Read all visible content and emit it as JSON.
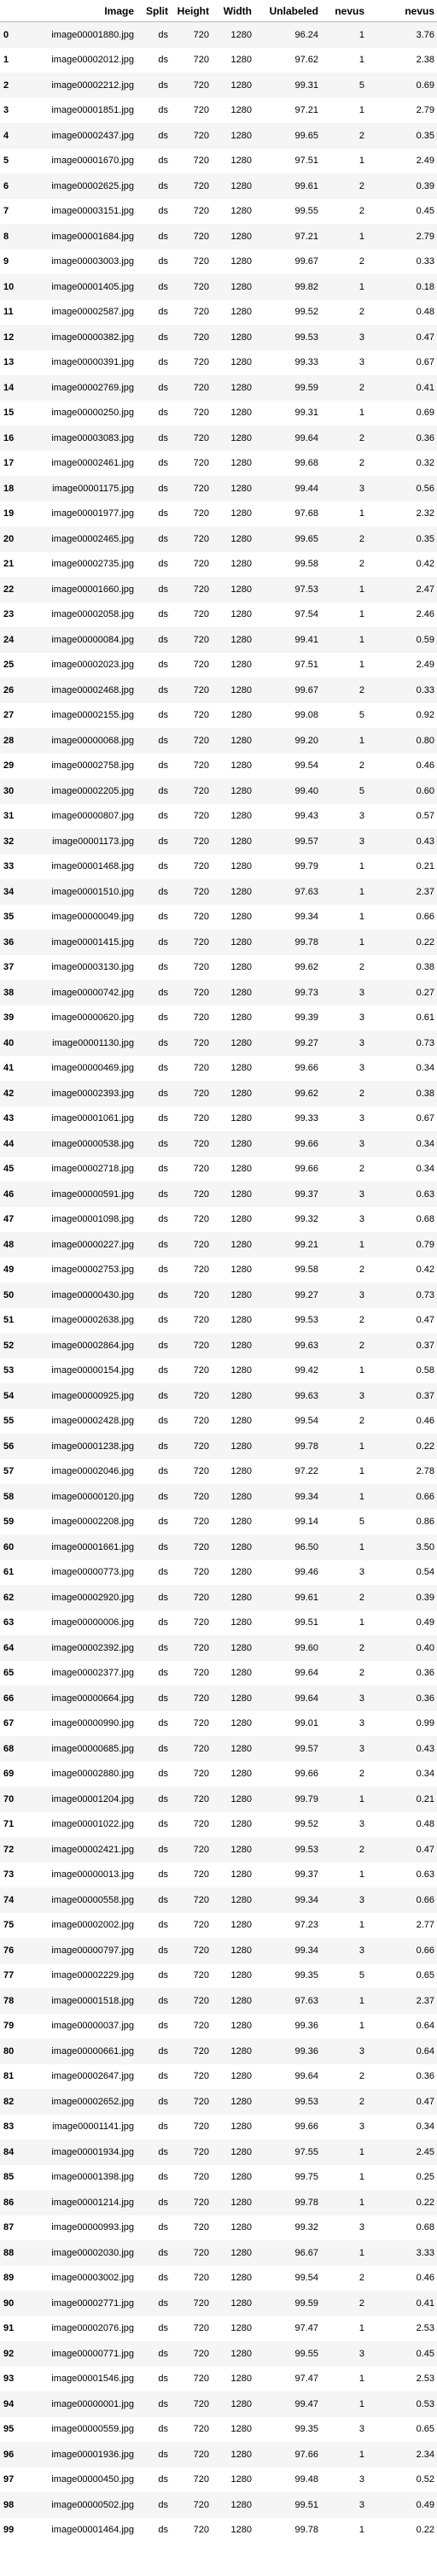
{
  "table": {
    "columns": [
      "",
      "Image",
      "Split",
      "Height",
      "Width",
      "Unlabeled",
      "nevus",
      "nevus"
    ],
    "rows": [
      [
        "0",
        "image00001880.jpg",
        "ds",
        "720",
        "1280",
        "96.24",
        "1",
        "3.76"
      ],
      [
        "1",
        "image00002012.jpg",
        "ds",
        "720",
        "1280",
        "97.62",
        "1",
        "2.38"
      ],
      [
        "2",
        "image00002212.jpg",
        "ds",
        "720",
        "1280",
        "99.31",
        "5",
        "0.69"
      ],
      [
        "3",
        "image00001851.jpg",
        "ds",
        "720",
        "1280",
        "97.21",
        "1",
        "2.79"
      ],
      [
        "4",
        "image00002437.jpg",
        "ds",
        "720",
        "1280",
        "99.65",
        "2",
        "0.35"
      ],
      [
        "5",
        "image00001670.jpg",
        "ds",
        "720",
        "1280",
        "97.51",
        "1",
        "2.49"
      ],
      [
        "6",
        "image00002625.jpg",
        "ds",
        "720",
        "1280",
        "99.61",
        "2",
        "0.39"
      ],
      [
        "7",
        "image00003151.jpg",
        "ds",
        "720",
        "1280",
        "99.55",
        "2",
        "0.45"
      ],
      [
        "8",
        "image00001684.jpg",
        "ds",
        "720",
        "1280",
        "97.21",
        "1",
        "2.79"
      ],
      [
        "9",
        "image00003003.jpg",
        "ds",
        "720",
        "1280",
        "99.67",
        "2",
        "0.33"
      ],
      [
        "10",
        "image00001405.jpg",
        "ds",
        "720",
        "1280",
        "99.82",
        "1",
        "0.18"
      ],
      [
        "11",
        "image00002587.jpg",
        "ds",
        "720",
        "1280",
        "99.52",
        "2",
        "0.48"
      ],
      [
        "12",
        "image00000382.jpg",
        "ds",
        "720",
        "1280",
        "99.53",
        "3",
        "0.47"
      ],
      [
        "13",
        "image00000391.jpg",
        "ds",
        "720",
        "1280",
        "99.33",
        "3",
        "0.67"
      ],
      [
        "14",
        "image00002769.jpg",
        "ds",
        "720",
        "1280",
        "99.59",
        "2",
        "0.41"
      ],
      [
        "15",
        "image00000250.jpg",
        "ds",
        "720",
        "1280",
        "99.31",
        "1",
        "0.69"
      ],
      [
        "16",
        "image00003083.jpg",
        "ds",
        "720",
        "1280",
        "99.64",
        "2",
        "0.36"
      ],
      [
        "17",
        "image00002461.jpg",
        "ds",
        "720",
        "1280",
        "99.68",
        "2",
        "0.32"
      ],
      [
        "18",
        "image00001175.jpg",
        "ds",
        "720",
        "1280",
        "99.44",
        "3",
        "0.56"
      ],
      [
        "19",
        "image00001977.jpg",
        "ds",
        "720",
        "1280",
        "97.68",
        "1",
        "2.32"
      ],
      [
        "20",
        "image00002465.jpg",
        "ds",
        "720",
        "1280",
        "99.65",
        "2",
        "0.35"
      ],
      [
        "21",
        "image00002735.jpg",
        "ds",
        "720",
        "1280",
        "99.58",
        "2",
        "0.42"
      ],
      [
        "22",
        "image00001660.jpg",
        "ds",
        "720",
        "1280",
        "97.53",
        "1",
        "2.47"
      ],
      [
        "23",
        "image00002058.jpg",
        "ds",
        "720",
        "1280",
        "97.54",
        "1",
        "2.46"
      ],
      [
        "24",
        "image00000084.jpg",
        "ds",
        "720",
        "1280",
        "99.41",
        "1",
        "0.59"
      ],
      [
        "25",
        "image00002023.jpg",
        "ds",
        "720",
        "1280",
        "97.51",
        "1",
        "2.49"
      ],
      [
        "26",
        "image00002468.jpg",
        "ds",
        "720",
        "1280",
        "99.67",
        "2",
        "0.33"
      ],
      [
        "27",
        "image00002155.jpg",
        "ds",
        "720",
        "1280",
        "99.08",
        "5",
        "0.92"
      ],
      [
        "28",
        "image00000068.jpg",
        "ds",
        "720",
        "1280",
        "99.20",
        "1",
        "0.80"
      ],
      [
        "29",
        "image00002758.jpg",
        "ds",
        "720",
        "1280",
        "99.54",
        "2",
        "0.46"
      ],
      [
        "30",
        "image00002205.jpg",
        "ds",
        "720",
        "1280",
        "99.40",
        "5",
        "0.60"
      ],
      [
        "31",
        "image00000807.jpg",
        "ds",
        "720",
        "1280",
        "99.43",
        "3",
        "0.57"
      ],
      [
        "32",
        "image00001173.jpg",
        "ds",
        "720",
        "1280",
        "99.57",
        "3",
        "0.43"
      ],
      [
        "33",
        "image00001468.jpg",
        "ds",
        "720",
        "1280",
        "99.79",
        "1",
        "0.21"
      ],
      [
        "34",
        "image00001510.jpg",
        "ds",
        "720",
        "1280",
        "97.63",
        "1",
        "2.37"
      ],
      [
        "35",
        "image00000049.jpg",
        "ds",
        "720",
        "1280",
        "99.34",
        "1",
        "0.66"
      ],
      [
        "36",
        "image00001415.jpg",
        "ds",
        "720",
        "1280",
        "99.78",
        "1",
        "0.22"
      ],
      [
        "37",
        "image00003130.jpg",
        "ds",
        "720",
        "1280",
        "99.62",
        "2",
        "0.38"
      ],
      [
        "38",
        "image00000742.jpg",
        "ds",
        "720",
        "1280",
        "99.73",
        "3",
        "0.27"
      ],
      [
        "39",
        "image00000620.jpg",
        "ds",
        "720",
        "1280",
        "99.39",
        "3",
        "0.61"
      ],
      [
        "40",
        "image00001130.jpg",
        "ds",
        "720",
        "1280",
        "99.27",
        "3",
        "0.73"
      ],
      [
        "41",
        "image00000469.jpg",
        "ds",
        "720",
        "1280",
        "99.66",
        "3",
        "0.34"
      ],
      [
        "42",
        "image00002393.jpg",
        "ds",
        "720",
        "1280",
        "99.62",
        "2",
        "0.38"
      ],
      [
        "43",
        "image00001061.jpg",
        "ds",
        "720",
        "1280",
        "99.33",
        "3",
        "0.67"
      ],
      [
        "44",
        "image00000538.jpg",
        "ds",
        "720",
        "1280",
        "99.66",
        "3",
        "0.34"
      ],
      [
        "45",
        "image00002718.jpg",
        "ds",
        "720",
        "1280",
        "99.66",
        "2",
        "0.34"
      ],
      [
        "46",
        "image00000591.jpg",
        "ds",
        "720",
        "1280",
        "99.37",
        "3",
        "0.63"
      ],
      [
        "47",
        "image00001098.jpg",
        "ds",
        "720",
        "1280",
        "99.32",
        "3",
        "0.68"
      ],
      [
        "48",
        "image00000227.jpg",
        "ds",
        "720",
        "1280",
        "99.21",
        "1",
        "0.79"
      ],
      [
        "49",
        "image00002753.jpg",
        "ds",
        "720",
        "1280",
        "99.58",
        "2",
        "0.42"
      ],
      [
        "50",
        "image00000430.jpg",
        "ds",
        "720",
        "1280",
        "99.27",
        "3",
        "0.73"
      ],
      [
        "51",
        "image00002638.jpg",
        "ds",
        "720",
        "1280",
        "99.53",
        "2",
        "0.47"
      ],
      [
        "52",
        "image00002864.jpg",
        "ds",
        "720",
        "1280",
        "99.63",
        "2",
        "0.37"
      ],
      [
        "53",
        "image00000154.jpg",
        "ds",
        "720",
        "1280",
        "99.42",
        "1",
        "0.58"
      ],
      [
        "54",
        "image00000925.jpg",
        "ds",
        "720",
        "1280",
        "99.63",
        "3",
        "0.37"
      ],
      [
        "55",
        "image00002428.jpg",
        "ds",
        "720",
        "1280",
        "99.54",
        "2",
        "0.46"
      ],
      [
        "56",
        "image00001238.jpg",
        "ds",
        "720",
        "1280",
        "99.78",
        "1",
        "0.22"
      ],
      [
        "57",
        "image00002046.jpg",
        "ds",
        "720",
        "1280",
        "97.22",
        "1",
        "2.78"
      ],
      [
        "58",
        "image00000120.jpg",
        "ds",
        "720",
        "1280",
        "99.34",
        "1",
        "0.66"
      ],
      [
        "59",
        "image00002208.jpg",
        "ds",
        "720",
        "1280",
        "99.14",
        "5",
        "0.86"
      ],
      [
        "60",
        "image00001661.jpg",
        "ds",
        "720",
        "1280",
        "96.50",
        "1",
        "3.50"
      ],
      [
        "61",
        "image00000773.jpg",
        "ds",
        "720",
        "1280",
        "99.46",
        "3",
        "0.54"
      ],
      [
        "62",
        "image00002920.jpg",
        "ds",
        "720",
        "1280",
        "99.61",
        "2",
        "0.39"
      ],
      [
        "63",
        "image00000006.jpg",
        "ds",
        "720",
        "1280",
        "99.51",
        "1",
        "0.49"
      ],
      [
        "64",
        "image00002392.jpg",
        "ds",
        "720",
        "1280",
        "99.60",
        "2",
        "0.40"
      ],
      [
        "65",
        "image00002377.jpg",
        "ds",
        "720",
        "1280",
        "99.64",
        "2",
        "0.36"
      ],
      [
        "66",
        "image00000664.jpg",
        "ds",
        "720",
        "1280",
        "99.64",
        "3",
        "0.36"
      ],
      [
        "67",
        "image00000990.jpg",
        "ds",
        "720",
        "1280",
        "99.01",
        "3",
        "0.99"
      ],
      [
        "68",
        "image00000685.jpg",
        "ds",
        "720",
        "1280",
        "99.57",
        "3",
        "0.43"
      ],
      [
        "69",
        "image00002880.jpg",
        "ds",
        "720",
        "1280",
        "99.66",
        "2",
        "0.34"
      ],
      [
        "70",
        "image00001204.jpg",
        "ds",
        "720",
        "1280",
        "99.79",
        "1",
        "0.21"
      ],
      [
        "71",
        "image00001022.jpg",
        "ds",
        "720",
        "1280",
        "99.52",
        "3",
        "0.48"
      ],
      [
        "72",
        "image00002421.jpg",
        "ds",
        "720",
        "1280",
        "99.53",
        "2",
        "0.47"
      ],
      [
        "73",
        "image00000013.jpg",
        "ds",
        "720",
        "1280",
        "99.37",
        "1",
        "0.63"
      ],
      [
        "74",
        "image00000558.jpg",
        "ds",
        "720",
        "1280",
        "99.34",
        "3",
        "0.66"
      ],
      [
        "75",
        "image00002002.jpg",
        "ds",
        "720",
        "1280",
        "97.23",
        "1",
        "2.77"
      ],
      [
        "76",
        "image00000797.jpg",
        "ds",
        "720",
        "1280",
        "99.34",
        "3",
        "0.66"
      ],
      [
        "77",
        "image00002229.jpg",
        "ds",
        "720",
        "1280",
        "99.35",
        "5",
        "0.65"
      ],
      [
        "78",
        "image00001518.jpg",
        "ds",
        "720",
        "1280",
        "97.63",
        "1",
        "2.37"
      ],
      [
        "79",
        "image00000037.jpg",
        "ds",
        "720",
        "1280",
        "99.36",
        "1",
        "0.64"
      ],
      [
        "80",
        "image00000661.jpg",
        "ds",
        "720",
        "1280",
        "99.36",
        "3",
        "0.64"
      ],
      [
        "81",
        "image00002647.jpg",
        "ds",
        "720",
        "1280",
        "99.64",
        "2",
        "0.36"
      ],
      [
        "82",
        "image00002652.jpg",
        "ds",
        "720",
        "1280",
        "99.53",
        "2",
        "0.47"
      ],
      [
        "83",
        "image00001141.jpg",
        "ds",
        "720",
        "1280",
        "99.66",
        "3",
        "0.34"
      ],
      [
        "84",
        "image00001934.jpg",
        "ds",
        "720",
        "1280",
        "97.55",
        "1",
        "2.45"
      ],
      [
        "85",
        "image00001398.jpg",
        "ds",
        "720",
        "1280",
        "99.75",
        "1",
        "0.25"
      ],
      [
        "86",
        "image00001214.jpg",
        "ds",
        "720",
        "1280",
        "99.78",
        "1",
        "0.22"
      ],
      [
        "87",
        "image00000993.jpg",
        "ds",
        "720",
        "1280",
        "99.32",
        "3",
        "0.68"
      ],
      [
        "88",
        "image00002030.jpg",
        "ds",
        "720",
        "1280",
        "96.67",
        "1",
        "3.33"
      ],
      [
        "89",
        "image00003002.jpg",
        "ds",
        "720",
        "1280",
        "99.54",
        "2",
        "0.46"
      ],
      [
        "90",
        "image00002771.jpg",
        "ds",
        "720",
        "1280",
        "99.59",
        "2",
        "0.41"
      ],
      [
        "91",
        "image00002076.jpg",
        "ds",
        "720",
        "1280",
        "97.47",
        "1",
        "2.53"
      ],
      [
        "92",
        "image00000771.jpg",
        "ds",
        "720",
        "1280",
        "99.55",
        "3",
        "0.45"
      ],
      [
        "93",
        "image00001546.jpg",
        "ds",
        "720",
        "1280",
        "97.47",
        "1",
        "2.53"
      ],
      [
        "94",
        "image00000001.jpg",
        "ds",
        "720",
        "1280",
        "99.47",
        "1",
        "0.53"
      ],
      [
        "95",
        "image00000559.jpg",
        "ds",
        "720",
        "1280",
        "99.35",
        "3",
        "0.65"
      ],
      [
        "96",
        "image00001936.jpg",
        "ds",
        "720",
        "1280",
        "97.66",
        "1",
        "2.34"
      ],
      [
        "97",
        "image00000450.jpg",
        "ds",
        "720",
        "1280",
        "99.48",
        "3",
        "0.52"
      ],
      [
        "98",
        "image00000502.jpg",
        "ds",
        "720",
        "1280",
        "99.51",
        "3",
        "0.49"
      ],
      [
        "99",
        "image00001464.jpg",
        "ds",
        "720",
        "1280",
        "99.78",
        "1",
        "0.22"
      ]
    ]
  }
}
